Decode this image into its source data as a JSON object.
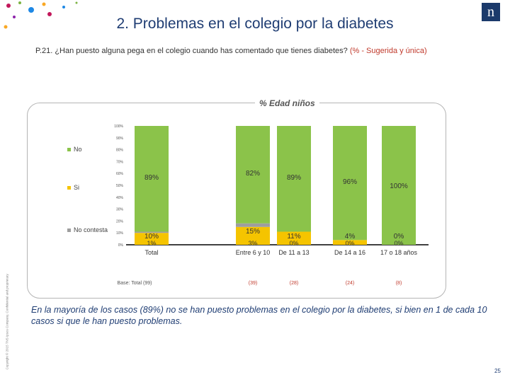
{
  "header": {
    "title": "2. Problemas en el colegio por la diabetes",
    "question": "P.21. ¿Han puesto alguna pega en el colegio cuando has comentado que tienes diabetes?",
    "question_note": "(% - Sugerida y única)"
  },
  "logo_icon": "brand-logo-icon",
  "section_title": "% Edad niños",
  "colors": {
    "no": "#8bc34a",
    "si": "#f5c400",
    "no_contesta": "#9e9e9e",
    "brand": "#1f3d73"
  },
  "chart_data": {
    "type": "bar",
    "stacked": true,
    "categories": [
      "Total",
      "Entre 6 y 10",
      "De 11 a 13",
      "De 14 a 16",
      "17 o 18 años"
    ],
    "bases": [
      "Base: Total (99)",
      "(39)",
      "(28)",
      "(24)",
      "(8)"
    ],
    "series": [
      {
        "name": "No",
        "values": [
          89,
          82,
          89,
          96,
          100
        ],
        "labels": [
          "89%",
          "82%",
          "89%",
          "96%",
          "100%"
        ]
      },
      {
        "name": "Si",
        "values": [
          10,
          15,
          11,
          4,
          0
        ],
        "labels": [
          "10%",
          "15%",
          "11%",
          "4%",
          "0%"
        ]
      },
      {
        "name": "No contesta",
        "values": [
          1,
          3,
          0,
          0,
          0
        ],
        "labels": [
          "1%",
          "3%",
          "0%",
          "0%",
          "0%"
        ]
      }
    ],
    "yticks": [
      "0%",
      "10%",
      "20%",
      "30%",
      "40%",
      "50%",
      "60%",
      "70%",
      "80%",
      "90%",
      "100%"
    ],
    "ylim": [
      0,
      100
    ],
    "legend_position": "left"
  },
  "conclusion": "En la mayoría de los casos (89%) no se han puesto problemas en el colegio por la diabetes, si bien en 1 de cada 10 casos si que le han puesto problemas.",
  "page_number": "25",
  "copyright": "Copyright © 2015 TNS Ipsos Company. Confidential and proprietary"
}
